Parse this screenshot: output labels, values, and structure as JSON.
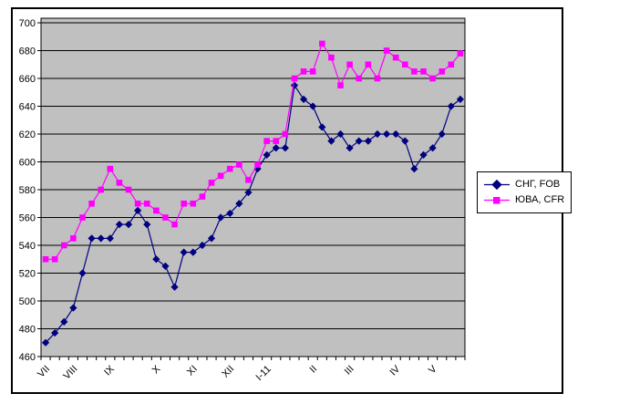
{
  "chart_data": {
    "type": "line",
    "title": "",
    "plot_bg": "#C0C0C0",
    "grid": true,
    "legend_position": "right",
    "ylim": [
      460,
      700
    ],
    "y_step": 20,
    "y_tick_labels": [
      "460",
      "480",
      "500",
      "520",
      "540",
      "560",
      "580",
      "600",
      "620",
      "640",
      "660",
      "680",
      "700"
    ],
    "x_tick_labels": [
      {
        "label": "VII",
        "index": 0
      },
      {
        "label": "VIII",
        "index": 3
      },
      {
        "label": "IX",
        "index": 7
      },
      {
        "label": "X",
        "index": 12
      },
      {
        "label": "XI",
        "index": 16
      },
      {
        "label": "XII",
        "index": 20
      },
      {
        "label": "I-11",
        "index": 24
      },
      {
        "label": "II",
        "index": 29
      },
      {
        "label": "III",
        "index": 33
      },
      {
        "label": "IV",
        "index": 38
      },
      {
        "label": "V",
        "index": 42
      }
    ],
    "series": [
      {
        "name": "СНГ, FOB",
        "color": "#000080",
        "marker": "diamond",
        "values": [
          470,
          477,
          485,
          495,
          520,
          545,
          545,
          545,
          555,
          555,
          565,
          555,
          530,
          525,
          510,
          535,
          535,
          540,
          545,
          560,
          563,
          570,
          578,
          595,
          605,
          610,
          610,
          655,
          645,
          640,
          625,
          615,
          620,
          610,
          615,
          615,
          620,
          620,
          620,
          615,
          595,
          605,
          610,
          620,
          640,
          645
        ]
      },
      {
        "name": "ЮВА, CFR",
        "color": "#FF00FF",
        "marker": "square",
        "values": [
          530,
          530,
          540,
          545,
          560,
          570,
          580,
          595,
          585,
          580,
          570,
          570,
          565,
          560,
          555,
          570,
          570,
          575,
          585,
          590,
          595,
          598,
          587,
          598,
          615,
          615,
          620,
          660,
          665,
          665,
          685,
          675,
          655,
          670,
          660,
          670,
          660,
          680,
          675,
          670,
          665,
          665,
          660,
          665,
          670,
          678
        ]
      }
    ]
  }
}
